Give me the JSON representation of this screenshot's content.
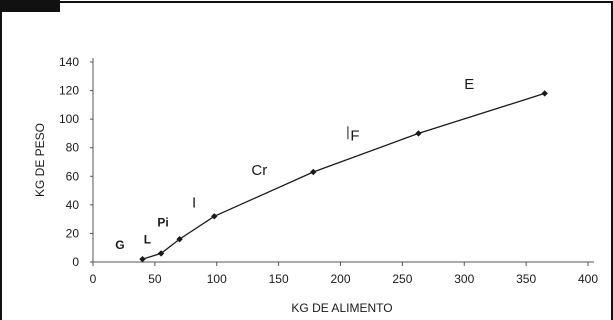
{
  "colors": {
    "frame": "#111111",
    "axis": "#555555",
    "line": "#1a1a1a",
    "text": "#1a1a1a"
  },
  "chart_data": {
    "type": "line",
    "title": "",
    "xlabel": "KG DE ALIMENTO",
    "ylabel": "KG DE PESO",
    "xlim": [
      0,
      400
    ],
    "ylim": [
      0,
      140
    ],
    "x_ticks": [
      0,
      50,
      100,
      150,
      200,
      250,
      300,
      350,
      400
    ],
    "y_ticks": [
      0,
      20,
      40,
      60,
      80,
      100,
      120,
      140
    ],
    "x_tick_labels": [
      "0",
      "50",
      "100",
      "150",
      "200",
      "250",
      "300",
      "350",
      "400"
    ],
    "y_tick_labels": [
      "0",
      "20",
      "40",
      "60",
      "80",
      "100",
      "120",
      "140"
    ],
    "grid": false,
    "legend": "none",
    "series": [
      {
        "x": [
          40,
          55,
          70,
          98,
          178,
          263,
          365
        ],
        "y": [
          2,
          6,
          16,
          32,
          63,
          90,
          118
        ]
      }
    ],
    "annotations": [
      {
        "text": "G",
        "x": 18,
        "y": 9,
        "bold": true
      },
      {
        "text": "L",
        "x": 41,
        "y": 13,
        "bold": true
      },
      {
        "text": "Pi",
        "x": 52,
        "y": 25,
        "bold": true
      },
      {
        "text": "I",
        "x": 80,
        "y": 38,
        "bold": false
      },
      {
        "text": "Cr",
        "x": 128,
        "y": 61,
        "bold": false
      },
      {
        "text": "F",
        "x": 208,
        "y": 85,
        "bold": false
      },
      {
        "text": "E",
        "x": 300,
        "y": 121,
        "bold": false
      }
    ]
  }
}
